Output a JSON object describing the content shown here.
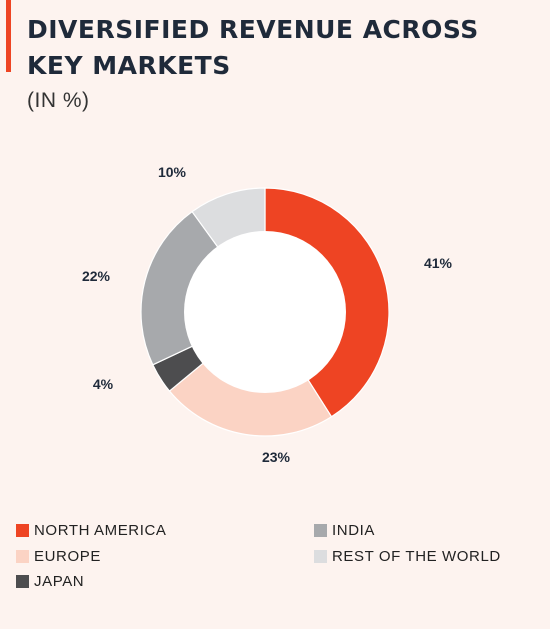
{
  "header": {
    "title": "DIVERSIFIED REVENUE ACROSS KEY MARKETS",
    "subtitle": "(IN %)"
  },
  "colors": {
    "accent": "#ee4423",
    "background": "#fdf3ef",
    "hole": "#ffffff"
  },
  "chart_data": {
    "type": "pie",
    "style": "donut",
    "title": "DIVERSIFIED REVENUE ACROSS KEY MARKETS",
    "subtitle": "(IN %)",
    "unit": "%",
    "start_angle": "12 o'clock",
    "direction": "clockwise",
    "legend_position": "bottom",
    "slices": [
      {
        "label": "NORTH AMERICA",
        "value": 41,
        "display": "41%",
        "color": "#ee4423"
      },
      {
        "label": "EUROPE",
        "value": 23,
        "display": "23%",
        "color": "#fbd3c4"
      },
      {
        "label": "JAPAN",
        "value": 4,
        "display": "4%",
        "color": "#4d4d4f"
      },
      {
        "label": "INDIA",
        "value": 22,
        "display": "22%",
        "color": "#a7a9ac"
      },
      {
        "label": "REST OF THE WORLD",
        "value": 10,
        "display": "10%",
        "color": "#dcdddf"
      }
    ],
    "legend": [
      {
        "label": "NORTH AMERICA",
        "color": "#ee4423"
      },
      {
        "label": "EUROPE",
        "color": "#fbd3c4"
      },
      {
        "label": "JAPAN",
        "color": "#4d4d4f"
      },
      {
        "label": "INDIA",
        "color": "#a7a9ac"
      },
      {
        "label": "REST OF THE WORLD",
        "color": "#dcdddf"
      }
    ]
  }
}
